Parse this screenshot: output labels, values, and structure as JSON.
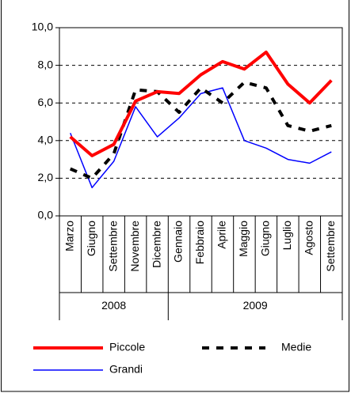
{
  "chart_data": {
    "type": "line",
    "category_groups": [
      {
        "label": "2008",
        "categories": [
          "Marzo",
          "Giugno",
          "Settembre",
          "Novembre",
          "Dicembre"
        ]
      },
      {
        "label": "2009",
        "categories": [
          "Gennaio",
          "Febbraio",
          "Aprile",
          "Maggio",
          "Giugno",
          "Luglio",
          "Agosto",
          "Settembre"
        ]
      }
    ],
    "series": [
      {
        "name": "Piccole",
        "color": "#ff0000",
        "line_width": 4,
        "dashed": false,
        "values": [
          4.2,
          3.2,
          3.8,
          6.1,
          6.6,
          6.5,
          7.5,
          8.2,
          7.8,
          8.7,
          7.0,
          6.0,
          7.2
        ]
      },
      {
        "name": "Medie",
        "color": "#000000",
        "line_width": 4,
        "dashed": true,
        "values": [
          2.5,
          2.0,
          3.3,
          6.7,
          6.6,
          5.5,
          6.8,
          6.0,
          7.1,
          6.8,
          4.8,
          4.5,
          4.8
        ]
      },
      {
        "name": "Grandi",
        "color": "#0000ff",
        "line_width": 1.5,
        "dashed": false,
        "values": [
          4.4,
          1.5,
          2.9,
          5.8,
          4.2,
          5.2,
          6.5,
          6.8,
          4.0,
          3.6,
          3.0,
          2.8,
          3.4
        ]
      }
    ],
    "ylim": [
      0,
      10
    ],
    "yticks": [
      {
        "value": 0,
        "label": "0,0"
      },
      {
        "value": 2,
        "label": "2,0"
      },
      {
        "value": 4,
        "label": "4,0"
      },
      {
        "value": 6,
        "label": "6,0"
      },
      {
        "value": 8,
        "label": "8,0"
      },
      {
        "value": 10,
        "label": "10,0"
      }
    ],
    "grid": true
  }
}
